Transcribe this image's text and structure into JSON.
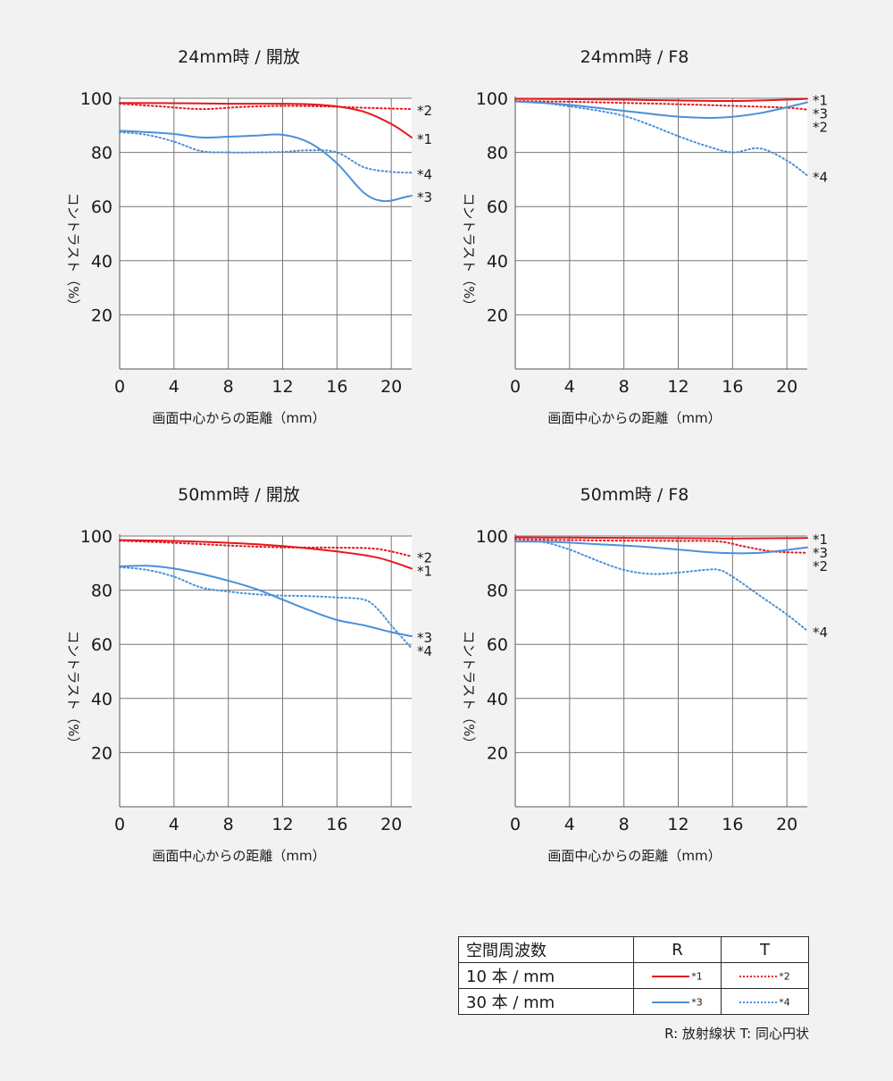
{
  "chart_data": [
    {
      "type": "line",
      "title": "24mm時 / 開放",
      "xlabel": "画面中心からの距離（mm）",
      "ylabel": "コントラスト（%）",
      "xlim": [
        0,
        21.5
      ],
      "ylim": [
        0,
        100
      ],
      "x_ticks": [
        0,
        4,
        8,
        12,
        16,
        20
      ],
      "y_ticks": [
        20,
        40,
        60,
        80,
        100
      ],
      "grid": true,
      "series": [
        {
          "name": "*1",
          "color": "#e8161b",
          "style": "solid",
          "x": [
            0,
            4,
            8,
            12,
            14,
            16,
            18,
            20,
            21.5
          ],
          "y": [
            98.3,
            98.2,
            98.0,
            98.0,
            97.8,
            97.0,
            95.0,
            90.5,
            85.5
          ]
        },
        {
          "name": "*2",
          "color": "#e8161b",
          "style": "dotted",
          "x": [
            0,
            3,
            6,
            9,
            12,
            15,
            18,
            21.5
          ],
          "y": [
            98.0,
            97.0,
            96.0,
            96.8,
            97.2,
            97.0,
            96.5,
            96.0
          ]
        },
        {
          "name": "*3",
          "color": "#4a90d9",
          "style": "solid",
          "x": [
            0,
            2,
            4,
            6,
            8,
            10,
            12,
            14,
            16,
            18,
            19.5,
            21,
            21.5
          ],
          "y": [
            88.0,
            87.5,
            86.8,
            85.5,
            85.8,
            86.2,
            86.5,
            83.5,
            76.0,
            65.0,
            62.0,
            63.5,
            64.0
          ]
        },
        {
          "name": "*4",
          "color": "#4a90d9",
          "style": "dotted",
          "x": [
            0,
            2,
            4,
            6,
            8,
            10,
            12,
            14,
            16,
            18,
            20,
            21.5
          ],
          "y": [
            87.5,
            86.5,
            84.0,
            80.5,
            80.0,
            80.0,
            80.2,
            80.8,
            80.0,
            74.5,
            72.8,
            72.5
          ]
        }
      ]
    },
    {
      "type": "line",
      "title": "24mm時 / F8",
      "xlabel": "画面中心からの距離（mm）",
      "ylabel": "コントラスト（%）",
      "xlim": [
        0,
        21.5
      ],
      "ylim": [
        0,
        100
      ],
      "x_ticks": [
        0,
        4,
        8,
        12,
        16,
        20
      ],
      "y_ticks": [
        20,
        40,
        60,
        80,
        100
      ],
      "grid": true,
      "series": [
        {
          "name": "*1",
          "color": "#e8161b",
          "style": "solid",
          "x": [
            0,
            4,
            8,
            12,
            16,
            20,
            21.5
          ],
          "y": [
            99.8,
            99.7,
            99.5,
            99.2,
            99.0,
            99.5,
            99.8
          ]
        },
        {
          "name": "*2",
          "color": "#e8161b",
          "style": "dotted",
          "x": [
            0,
            4,
            8,
            12,
            16,
            20,
            21.5
          ],
          "y": [
            99.0,
            98.7,
            98.3,
            97.8,
            97.2,
            96.5,
            95.8
          ]
        },
        {
          "name": "*3",
          "color": "#4a90d9",
          "style": "solid",
          "x": [
            0,
            3,
            6,
            9,
            12,
            15,
            18,
            21.5
          ],
          "y": [
            98.8,
            98.0,
            96.5,
            94.8,
            93.2,
            92.8,
            94.5,
            98.5
          ]
        },
        {
          "name": "*4",
          "color": "#4a90d9",
          "style": "dotted",
          "x": [
            0,
            2,
            4,
            6,
            8,
            10,
            12,
            14,
            16,
            18,
            20,
            21.5
          ],
          "y": [
            98.8,
            98.3,
            97.0,
            95.5,
            93.5,
            90.0,
            86.0,
            82.5,
            80.0,
            81.5,
            77.0,
            71.5
          ]
        }
      ]
    },
    {
      "type": "line",
      "title": "50mm時 / 開放",
      "xlabel": "画面中心からの距離（mm）",
      "ylabel": "コントラスト（%）",
      "xlim": [
        0,
        21.5
      ],
      "ylim": [
        0,
        100
      ],
      "x_ticks": [
        0,
        4,
        8,
        12,
        16,
        20
      ],
      "y_ticks": [
        20,
        40,
        60,
        80,
        100
      ],
      "grid": true,
      "series": [
        {
          "name": "*1",
          "color": "#e8161b",
          "style": "solid",
          "x": [
            0,
            4,
            8,
            12,
            16,
            19,
            21.5
          ],
          "y": [
            98.5,
            98.2,
            97.5,
            96.3,
            94.3,
            92.0,
            88.0
          ]
        },
        {
          "name": "*2",
          "color": "#e8161b",
          "style": "dotted",
          "x": [
            0,
            4,
            8,
            12,
            16,
            19,
            21.5
          ],
          "y": [
            98.3,
            97.5,
            96.5,
            95.8,
            95.7,
            95.2,
            92.5
          ]
        },
        {
          "name": "*3",
          "color": "#4a90d9",
          "style": "solid",
          "x": [
            0,
            2,
            4,
            6,
            8,
            10,
            12,
            14,
            16,
            18,
            20,
            21.5
          ],
          "y": [
            88.8,
            89.0,
            88.0,
            86.0,
            83.5,
            80.5,
            76.5,
            72.5,
            69.0,
            67.0,
            64.5,
            63.0
          ]
        },
        {
          "name": "*4",
          "color": "#4a90d9",
          "style": "dotted",
          "x": [
            0,
            2,
            4,
            6,
            8,
            10,
            12,
            14,
            16,
            18,
            19,
            20,
            21.5
          ],
          "y": [
            88.5,
            87.5,
            85.0,
            81.0,
            79.5,
            78.5,
            78.0,
            77.8,
            77.3,
            76.5,
            73.0,
            67.0,
            58.5
          ]
        }
      ]
    },
    {
      "type": "line",
      "title": "50mm時 / F8",
      "xlabel": "画面中心からの距離（mm）",
      "ylabel": "コントラスト（%）",
      "xlim": [
        0,
        21.5
      ],
      "ylim": [
        0,
        100
      ],
      "x_ticks": [
        0,
        4,
        8,
        12,
        16,
        20
      ],
      "y_ticks": [
        20,
        40,
        60,
        80,
        100
      ],
      "grid": true,
      "series": [
        {
          "name": "*1",
          "color": "#e8161b",
          "style": "solid",
          "x": [
            0,
            4,
            8,
            12,
            16,
            20,
            21.5
          ],
          "y": [
            99.5,
            99.4,
            99.3,
            99.2,
            99.1,
            99.2,
            99.3
          ]
        },
        {
          "name": "*2",
          "color": "#e8161b",
          "style": "dotted",
          "x": [
            0,
            4,
            8,
            12,
            15,
            17,
            19,
            21.5
          ],
          "y": [
            98.8,
            98.5,
            98.3,
            98.2,
            98.0,
            96.0,
            94.3,
            93.8
          ]
        },
        {
          "name": "*3",
          "color": "#4a90d9",
          "style": "solid",
          "x": [
            0,
            3,
            6,
            9,
            12,
            15,
            18,
            21.5
          ],
          "y": [
            98.0,
            97.8,
            97.0,
            96.2,
            95.0,
            93.8,
            93.8,
            95.8
          ]
        },
        {
          "name": "*4",
          "color": "#4a90d9",
          "style": "dotted",
          "x": [
            0,
            2,
            4,
            6,
            8,
            10,
            12,
            14,
            15,
            16,
            18,
            20,
            21.5
          ],
          "y": [
            98.0,
            97.8,
            95.0,
            91.0,
            87.5,
            86.0,
            86.5,
            87.5,
            87.5,
            85.0,
            78.0,
            71.0,
            65.0
          ]
        }
      ]
    }
  ],
  "legend_table": {
    "header": {
      "col1": "空間周波数",
      "col2": "R",
      "col3": "T"
    },
    "rows": [
      {
        "label": "10 本 / mm",
        "r_series": "*1",
        "t_series": "*2"
      },
      {
        "label": "30 本 / mm",
        "r_series": "*3",
        "t_series": "*4"
      }
    ],
    "footnote": "R: 放射線状  T: 同心円状"
  }
}
